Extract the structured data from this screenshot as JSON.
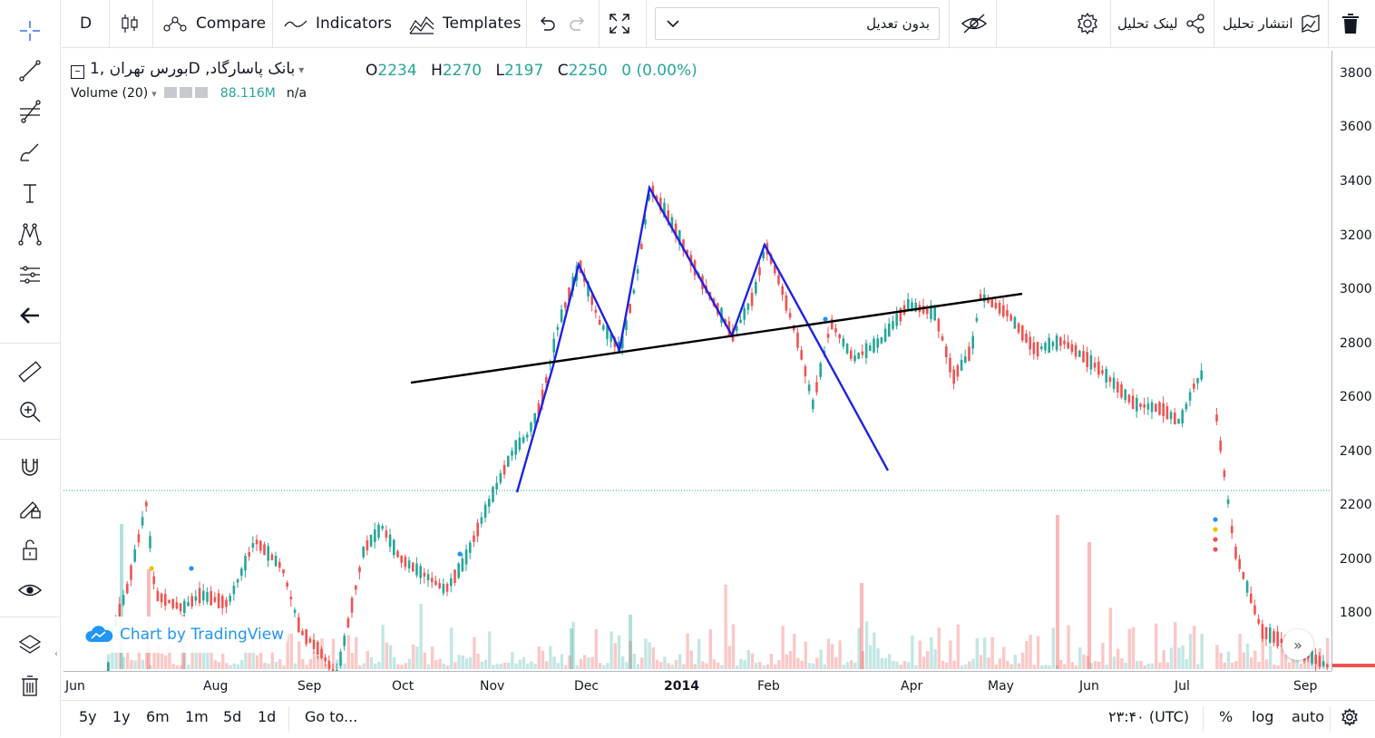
{
  "toolbar": {
    "interval": "D",
    "compare_label": "Compare",
    "indicators_label": "Indicators",
    "templates_label": "Templates",
    "adjustment_select": "بدون تعدیل",
    "share_link_label": "لینک تحلیل",
    "publish_label": "انتشار تحلیل"
  },
  "legend": {
    "symbol": "بورس تهران ,1D ,بانک پاسارگاد",
    "open_label": "O",
    "open": "2234",
    "high_label": "H",
    "high": "2270",
    "low_label": "L",
    "low": "2197",
    "close_label": "C",
    "close": "2250",
    "change": "0 (0.00%)",
    "volume_title": "Volume (20)",
    "volume_value": "88.116M",
    "volume_ma": "n/a"
  },
  "watermark": "Chart by TradingView",
  "price_axis": [
    "3800",
    "3600",
    "3400",
    "3200",
    "3000",
    "2800",
    "2600",
    "2400",
    "2200",
    "2000",
    "1800"
  ],
  "time_axis": [
    "Jun",
    "Aug",
    "Sep",
    "Oct",
    "Nov",
    "Dec",
    "2014",
    "Feb",
    "Apr",
    "May",
    "Jun",
    "Jul",
    "Sep"
  ],
  "bottom_bar": {
    "ranges": [
      "5y",
      "1y",
      "6m",
      "1m",
      "5d",
      "1d"
    ],
    "goto": "Go to...",
    "clock": "۲۳:۴۰ (UTC)",
    "percent": "%",
    "log": "log",
    "auto": "auto"
  },
  "colors": {
    "up": "#26a69a",
    "down": "#ef5350",
    "pattern": "#1e22e6",
    "trend": "#000000"
  },
  "chart_data": {
    "type": "candlestick",
    "ylim": [
      1650,
      3870
    ],
    "x": [
      "Jun",
      "Aug",
      "Sep",
      "Oct",
      "Nov",
      "Dec",
      "2014",
      "Feb",
      "Apr",
      "May",
      "Jun",
      "Jul",
      "Sep"
    ],
    "pattern_points": [
      [
        2250,
        "Nov"
      ],
      [
        2730,
        "Nov"
      ],
      [
        3090,
        "Dec"
      ],
      [
        2780,
        "Dec"
      ],
      [
        3380,
        "Dec"
      ],
      [
        2830,
        "2014"
      ],
      [
        3160,
        "Feb"
      ],
      [
        2330,
        "Apr"
      ]
    ],
    "trendline": [
      [
        2650,
        "Oct"
      ],
      [
        2980,
        "May"
      ]
    ]
  }
}
